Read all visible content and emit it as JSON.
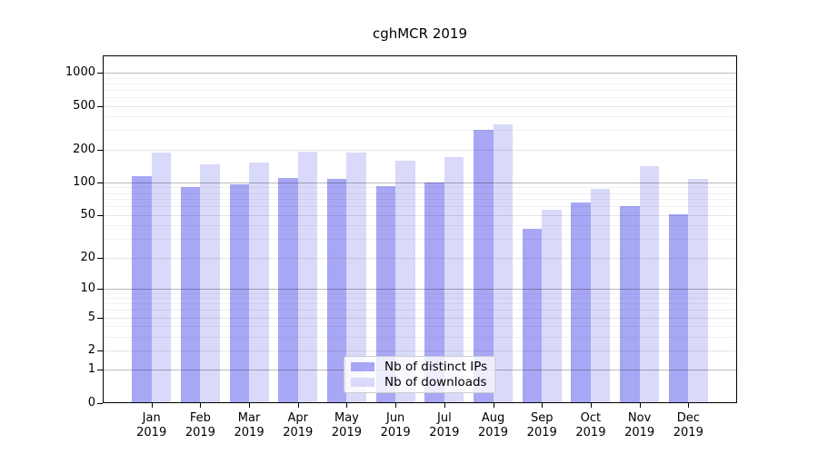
{
  "chart_data": {
    "type": "bar",
    "title": "cghMCR 2019",
    "categories": [
      "Jan 2019",
      "Feb 2019",
      "Mar 2019",
      "Apr 2019",
      "May 2019",
      "Jun 2019",
      "Jul 2019",
      "Aug 2019",
      "Sep 2019",
      "Oct 2019",
      "Nov 2019",
      "Dec 2019"
    ],
    "series": [
      {
        "name": "Nb of distinct IPs",
        "color": "#a7a7f5",
        "values": [
          113,
          91,
          96,
          110,
          108,
          92,
          99,
          304,
          37,
          65,
          60,
          51
        ]
      },
      {
        "name": "Nb of downloads",
        "color": "#d9d9f9",
        "values": [
          188,
          146,
          152,
          192,
          189,
          158,
          169,
          340,
          56,
          88,
          141,
          108
        ]
      }
    ],
    "xlabel": "",
    "ylabel": "",
    "yscale": "log10(value+1)",
    "yticks": [
      0,
      1,
      2,
      5,
      10,
      20,
      50,
      100,
      200,
      500,
      1000
    ],
    "ylim": [
      0,
      1400
    ],
    "grid": true,
    "legend_position": "lower-center"
  }
}
